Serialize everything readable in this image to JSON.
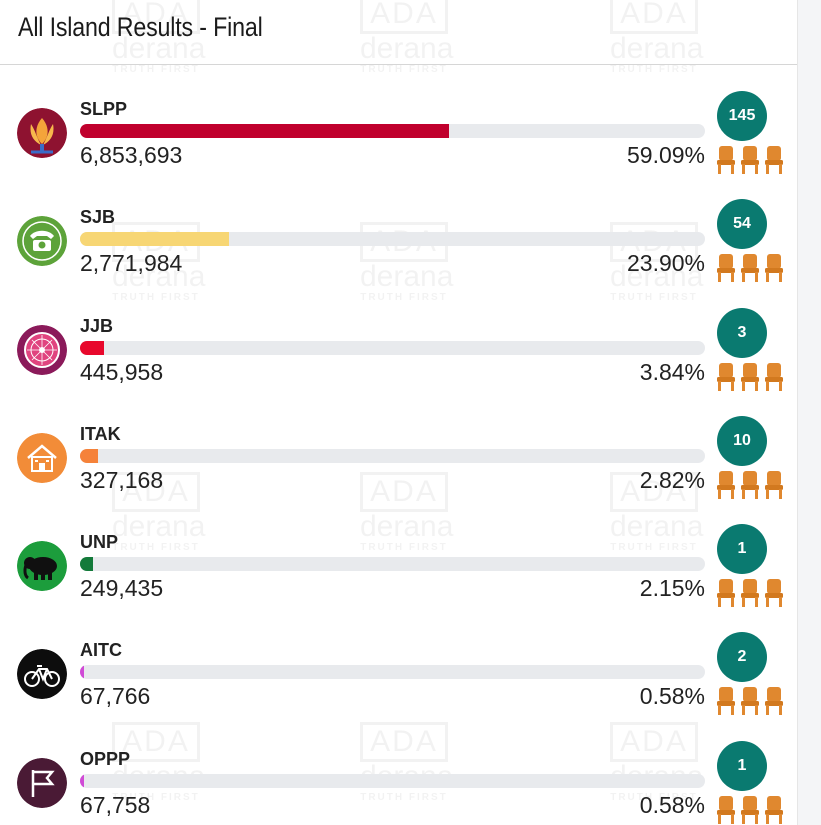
{
  "header": {
    "title": "All Island Results - Final"
  },
  "watermark": {
    "ada": "ADA",
    "derana": "derana",
    "tagline": "TRUTH FIRST"
  },
  "colors": {
    "seat_badge": "#0a7a70",
    "track": "#e8eaed",
    "chair": "#e0882f"
  },
  "results": [
    {
      "party": "SLPP",
      "votes": "6,853,693",
      "percent": "59.09%",
      "share": 59.09,
      "seats": "145",
      "bar_color": "#c0002d",
      "logo": "lotus-bud-icon",
      "logo_bg": "#8e1230"
    },
    {
      "party": "SJB",
      "votes": "2,771,984",
      "percent": "23.90%",
      "share": 23.9,
      "seats": "54",
      "bar_color": "#f7d674",
      "logo": "telephone-icon",
      "logo_bg": "#5da33a"
    },
    {
      "party": "JJB",
      "votes": "445,958",
      "percent": "3.84%",
      "share": 3.84,
      "seats": "3",
      "bar_color": "#e8082c",
      "logo": "compass-icon",
      "logo_bg": "#8b1a5a"
    },
    {
      "party": "ITAK",
      "votes": "327,168",
      "percent": "2.82%",
      "share": 2.82,
      "seats": "10",
      "bar_color": "#f5823a",
      "logo": "house-icon",
      "logo_bg": "#f28c38"
    },
    {
      "party": "UNP",
      "votes": "249,435",
      "percent": "2.15%",
      "share": 2.15,
      "seats": "1",
      "bar_color": "#137a3a",
      "logo": "elephant-icon",
      "logo_bg": "#1c9d3c"
    },
    {
      "party": "AITC",
      "votes": "67,766",
      "percent": "0.58%",
      "share": 0.58,
      "seats": "2",
      "bar_color": "#d04bd6",
      "logo": "bicycle-icon",
      "logo_bg": "#0d0d0d"
    },
    {
      "party": "OPPP",
      "votes": "67,758",
      "percent": "0.58%",
      "share": 0.58,
      "seats": "1",
      "bar_color": "#d04bd6",
      "logo": "flag-icon",
      "logo_bg": "#4a1a35"
    }
  ]
}
